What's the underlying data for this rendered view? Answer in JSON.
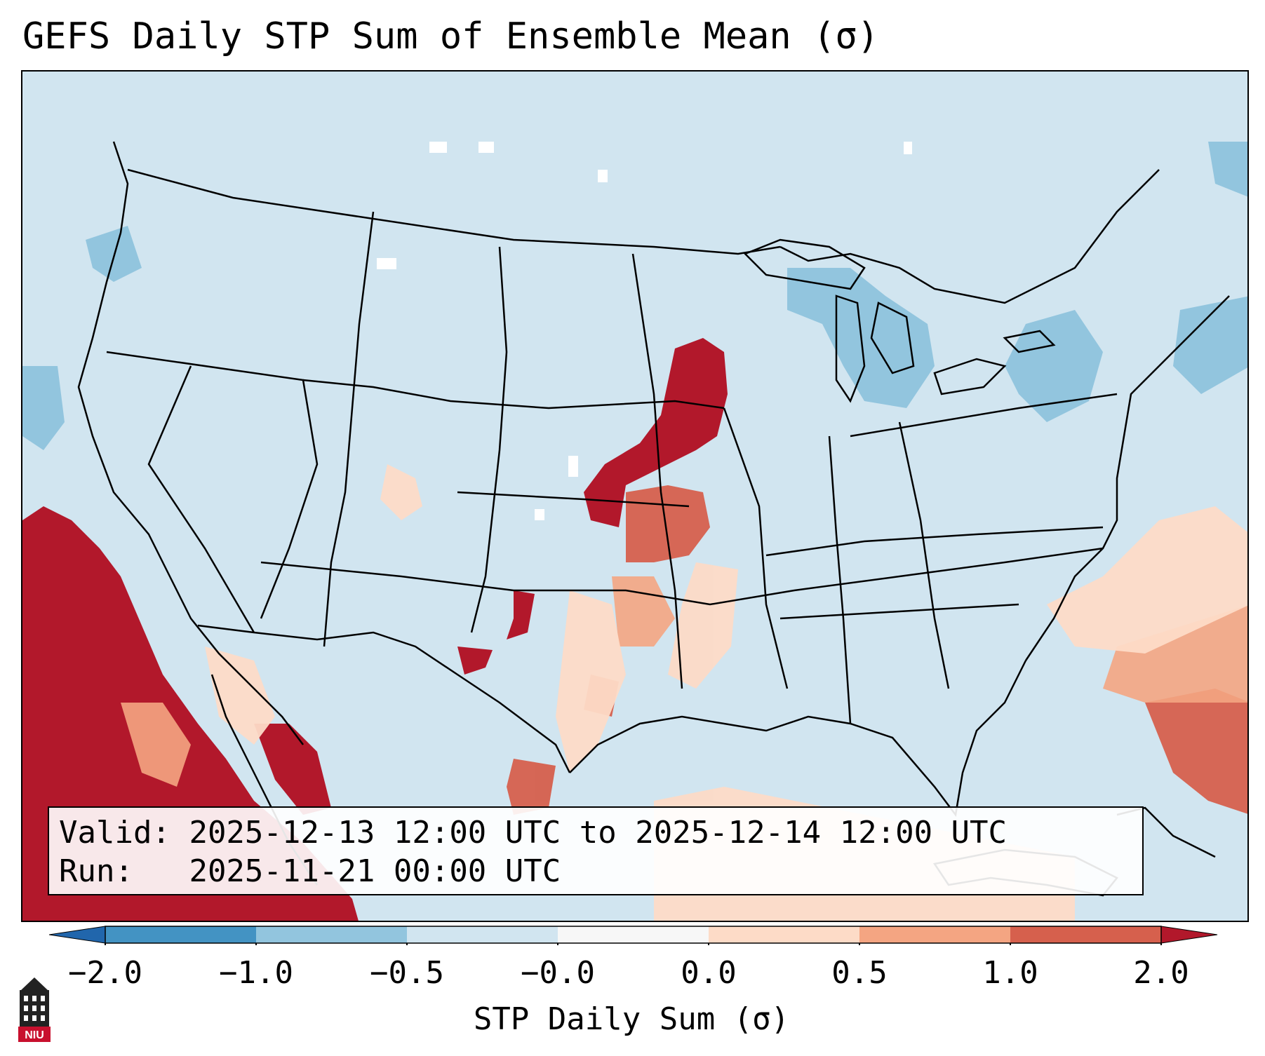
{
  "title": "GEFS Daily STP Sum of Ensemble Mean (σ)",
  "info": {
    "valid_label": "Valid:",
    "valid_value": "2025-12-13 12:00 UTC to 2025-12-14 12:00 UTC",
    "run_label": "Run:",
    "run_value": "2025-11-21 00:00 UTC"
  },
  "colorbar": {
    "label": "STP Daily Sum (σ)",
    "ticks": [
      "−2.0",
      "−1.0",
      "−0.5",
      "−0.0",
      "0.0",
      "0.5",
      "1.0",
      "2.0"
    ],
    "colors": [
      "#4393c3",
      "#92c5de",
      "#d1e5f0",
      "#f7f7f7",
      "#fddbc7",
      "#f4a582",
      "#d6604d",
      "#b2182b"
    ]
  },
  "map": {
    "background_color": "#d1e5f0",
    "region": "Contiguous United States"
  },
  "logo": {
    "text": "NIU",
    "color": "#c8102e"
  },
  "icons": {
    "logo": "niu-logo-icon"
  }
}
